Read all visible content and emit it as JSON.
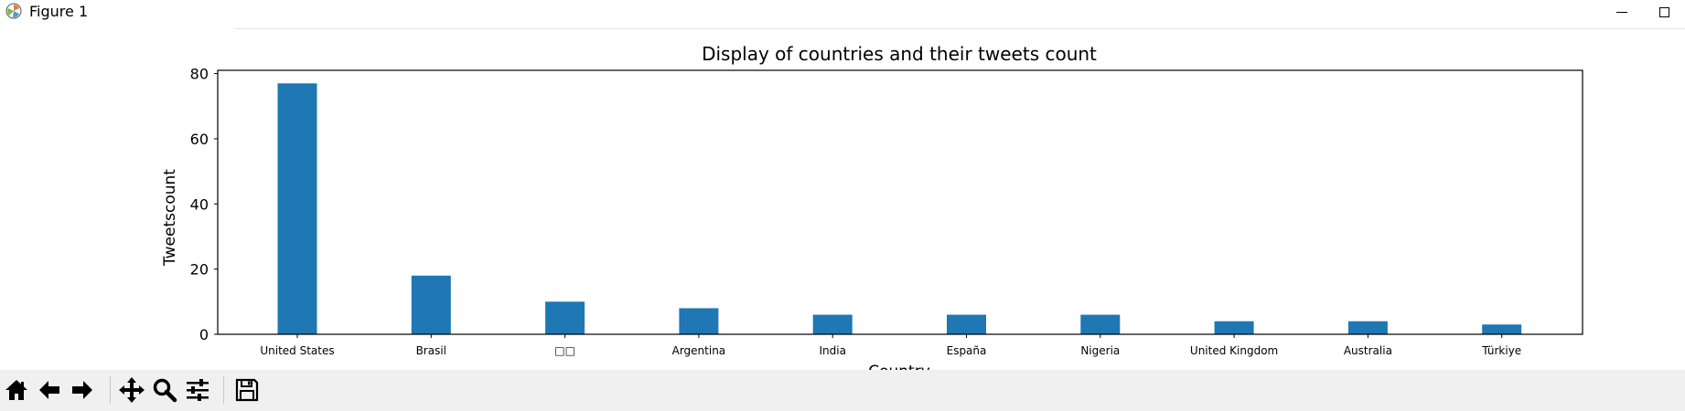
{
  "window": {
    "title": "Figure 1"
  },
  "toolbar": {
    "buttons": [
      {
        "name": "home-button",
        "icon": "home-icon"
      },
      {
        "name": "back-button",
        "icon": "arrow-left-icon"
      },
      {
        "name": "forward-button",
        "icon": "arrow-right-icon"
      },
      {
        "name": "pan-button",
        "icon": "move-icon"
      },
      {
        "name": "zoom-button",
        "icon": "magnifier-icon"
      },
      {
        "name": "configure-subplots-button",
        "icon": "sliders-icon"
      },
      {
        "name": "save-button",
        "icon": "floppy-disk-icon"
      }
    ]
  },
  "chart_data": {
    "type": "bar",
    "title": "Display of countries and their tweets count",
    "xlabel": "Country",
    "ylabel": "Tweetscount",
    "categories": [
      "United States",
      "Brasil",
      "□□",
      "Argentina",
      "India",
      "España",
      "Nigeria",
      "United Kingdom",
      "Australia",
      "Türkiye"
    ],
    "values": [
      77,
      18,
      10,
      8,
      6,
      6,
      6,
      4,
      4,
      3
    ],
    "ylim": [
      0,
      81
    ],
    "yticks": [
      0,
      20,
      40,
      60,
      80
    ],
    "grid": false,
    "bar_color": "#1f77b4"
  }
}
